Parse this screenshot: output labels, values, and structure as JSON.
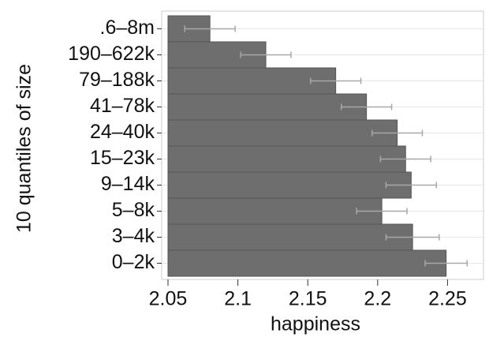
{
  "chart_data": {
    "type": "bar",
    "orientation": "horizontal",
    "x_label": "happiness",
    "y_label": "10 quantiles of size",
    "categories": [
      ".6–8m",
      "190–622k",
      "79–188k",
      "41–78k",
      "24–40k",
      "15–23k",
      "9–14k",
      "5–8k",
      "3–4k",
      "0–2k"
    ],
    "values": [
      2.08,
      2.12,
      2.17,
      2.192,
      2.214,
      2.22,
      2.224,
      2.203,
      2.225,
      2.249
    ],
    "errors": [
      0.018,
      0.018,
      0.018,
      0.018,
      0.018,
      0.018,
      0.018,
      0.018,
      0.019,
      0.015
    ],
    "color": "#6e6e6e",
    "error_color": "#a8a8a8",
    "xlim": [
      2.05,
      2.265
    ],
    "xticks": [
      2.05,
      2.1,
      2.15,
      2.2,
      2.25
    ],
    "grid": true
  }
}
